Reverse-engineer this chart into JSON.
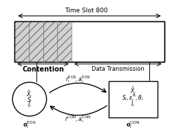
{
  "time_slot_label": "Time Slot 800",
  "contention_label": "Contention",
  "data_transmission_label": "Data Transmission",
  "r_eos_label": "$r_i^{\\mathrm{EOS}}, a_i^{\\mathrm{EOS}}$",
  "r_con_label": "$r^{\\mathrm{CON}}, a_i^{\\mathrm{CON}}$",
  "o_eos_label": "$\\mathbf{o}_i^{\\mathrm{EOS}}$",
  "o_con_label": "$\\mathbf{o}_i^{\\mathrm{CON}}$",
  "eos_state": "$\\bar{X}_i$\n$S_i$\n$I_i$",
  "con_state": "$\\bar{X}_i$\n$S_i, \\varepsilon_i^{\\theta_i}, \\theta_i$\n$I_i$",
  "bg_color": "#ffffff",
  "box_color": "#000000",
  "hatch_color": "#aaaaaa",
  "arrow_color": "#000000"
}
